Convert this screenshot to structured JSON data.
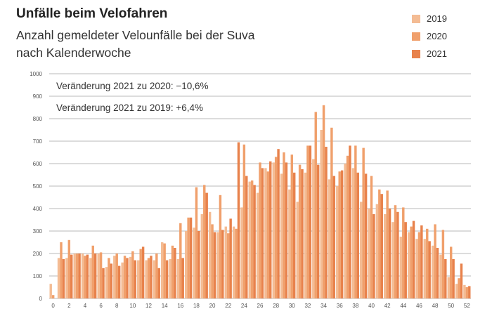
{
  "title": "Unfälle beim Velofahren",
  "subtitle_line1": "Anzahl gemeldeter Velounfälle bei der Suva",
  "subtitle_line2": "nach Kalenderwoche",
  "colors": {
    "2019": "#f4bc94",
    "2020": "#f0a06c",
    "2021": "#e8824c",
    "grid": "#a0a0a0"
  },
  "chart_data": {
    "type": "bar",
    "title": "Unfälle beim Velofahren",
    "xlabel": "",
    "ylabel": "",
    "ylim": [
      0,
      1000
    ],
    "yticks": [
      0,
      100,
      200,
      300,
      400,
      500,
      600,
      700,
      800,
      900,
      1000
    ],
    "xticks": [
      0,
      2,
      4,
      6,
      8,
      10,
      12,
      14,
      16,
      18,
      20,
      22,
      24,
      26,
      28,
      30,
      32,
      34,
      36,
      38,
      40,
      42,
      44,
      46,
      48,
      50,
      52
    ],
    "categories": [
      0,
      1,
      2,
      3,
      4,
      5,
      6,
      7,
      8,
      9,
      10,
      11,
      12,
      13,
      14,
      15,
      16,
      17,
      18,
      19,
      20,
      21,
      22,
      23,
      24,
      25,
      26,
      27,
      28,
      29,
      30,
      31,
      32,
      33,
      34,
      35,
      36,
      37,
      38,
      39,
      40,
      41,
      42,
      43,
      44,
      45,
      46,
      47,
      48,
      49,
      50,
      51,
      52
    ],
    "legend_position": "top-right",
    "grid": true,
    "annotations": [
      "Veränderung 2021 zu 2020: −10,6%",
      "Veränderung 2021 zu 2019: +6,4%"
    ],
    "series": [
      {
        "name": "2019",
        "values": [
          65,
          180,
          180,
          200,
          200,
          180,
          200,
          140,
          190,
          160,
          185,
          170,
          170,
          170,
          250,
          175,
          175,
          300,
          315,
          375,
          385,
          295,
          320,
          320,
          405,
          520,
          470,
          580,
          605,
          555,
          485,
          430,
          560,
          620,
          750,
          530,
          500,
          600,
          580,
          430,
          400,
          420,
          375,
          340,
          275,
          295,
          265,
          265,
          235,
          195,
          95,
          65,
          60
        ]
      },
      {
        "name": "2020",
        "values": [
          15,
          250,
          260,
          200,
          190,
          235,
          205,
          180,
          200,
          190,
          210,
          220,
          180,
          200,
          245,
          235,
          335,
          360,
          495,
          505,
          330,
          460,
          290,
          310,
          685,
          525,
          605,
          565,
          630,
          650,
          640,
          595,
          680,
          830,
          860,
          760,
          565,
          635,
          680,
          670,
          545,
          485,
          480,
          415,
          405,
          320,
          295,
          310,
          330,
          305,
          230,
          90,
          50
        ]
      },
      {
        "name": "2021",
        "values": [
          0,
          175,
          195,
          200,
          195,
          200,
          135,
          155,
          145,
          180,
          170,
          230,
          190,
          135,
          170,
          225,
          180,
          360,
          300,
          470,
          295,
          305,
          355,
          695,
          545,
          505,
          580,
          610,
          665,
          605,
          560,
          575,
          680,
          595,
          675,
          545,
          570,
          680,
          560,
          555,
          375,
          465,
          400,
          385,
          340,
          345,
          325,
          255,
          225,
          175,
          175,
          155,
          55
        ]
      }
    ]
  }
}
